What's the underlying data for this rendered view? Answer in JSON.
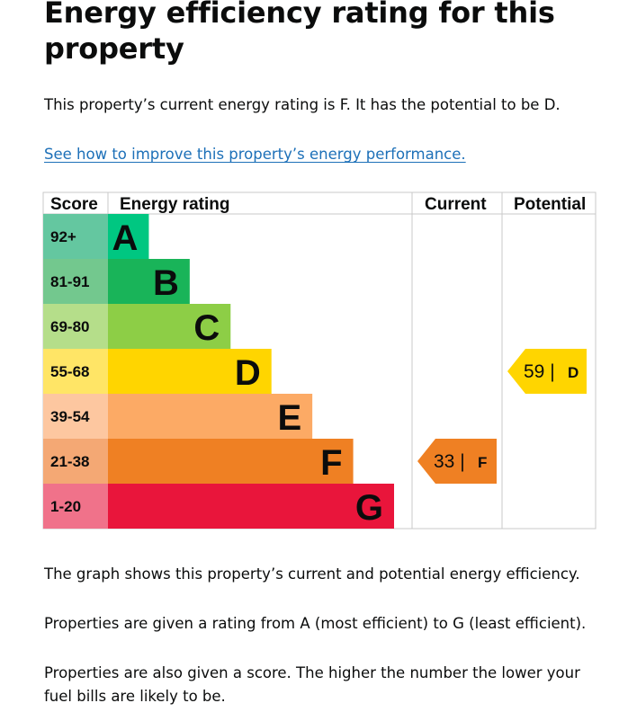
{
  "page": {
    "title": "Energy efficiency rating for this property",
    "intro": "This property’s current energy rating is F. It has the potential to be D.",
    "link_text": "See how to improve this property’s energy performance.",
    "notes": [
      "The graph shows this property’s current and potential energy efficiency.",
      "Properties are given a rating from A (most efficient) to G (least efficient).",
      "Properties are also given a score. The higher the number the lower your fuel bills are likely to be."
    ]
  },
  "chart_data": {
    "type": "table",
    "columns": [
      "Score",
      "Energy rating",
      "Current",
      "Potential"
    ],
    "bands": [
      {
        "score": "92+",
        "rating": "A",
        "color": "#00c781",
        "score_bg": "#64c7a0"
      },
      {
        "score": "81-91",
        "rating": "B",
        "color": "#19b459",
        "score_bg": "#73c88e"
      },
      {
        "score": "69-80",
        "rating": "C",
        "color": "#8dce46",
        "score_bg": "#b5de8a"
      },
      {
        "score": "55-68",
        "rating": "D",
        "color": "#ffd500",
        "score_bg": "#ffe566"
      },
      {
        "score": "39-54",
        "rating": "E",
        "color": "#fcaa65",
        "score_bg": "#fdc7a0"
      },
      {
        "score": "21-38",
        "rating": "F",
        "color": "#ef8023",
        "score_bg": "#f4a874"
      },
      {
        "score": "1-20",
        "rating": "G",
        "color": "#e9153b",
        "score_bg": "#f0728a"
      }
    ],
    "current": {
      "score": 33,
      "rating": "F",
      "label": "33 |",
      "color": "#ef8023"
    },
    "potential": {
      "score": 59,
      "rating": "D",
      "label": "59 |",
      "color": "#ffd500"
    }
  }
}
